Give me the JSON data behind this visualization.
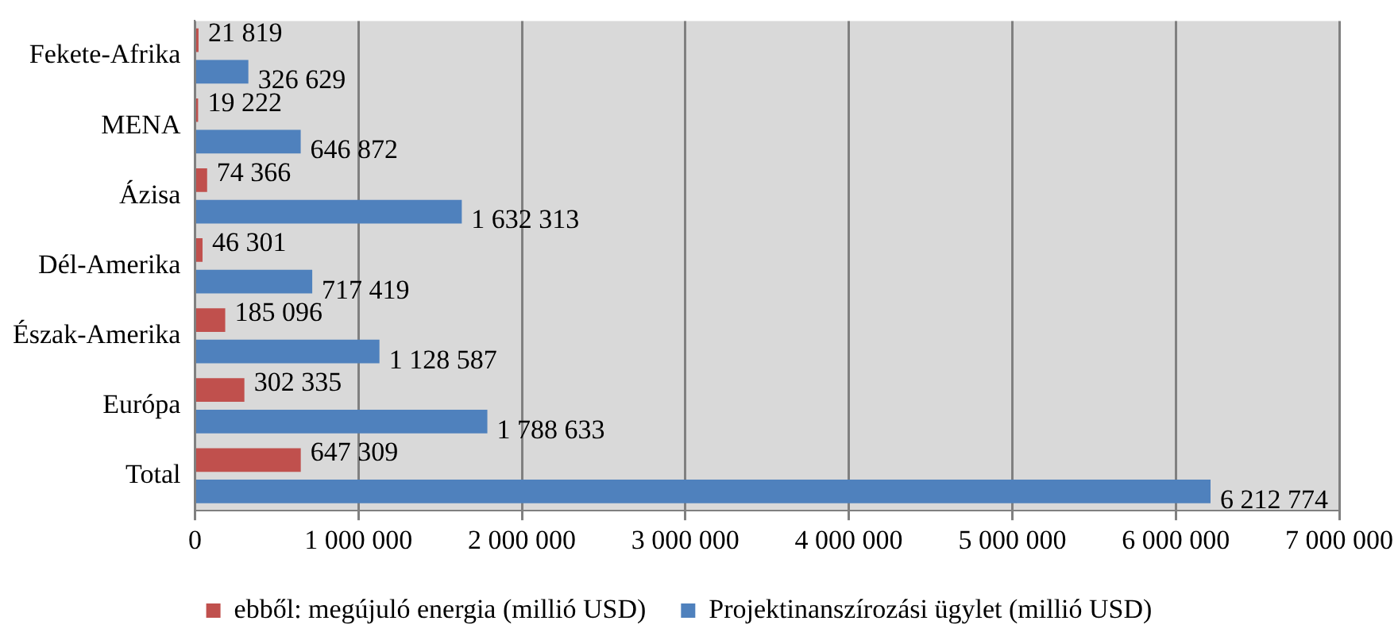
{
  "chart_data": {
    "type": "bar",
    "orientation": "horizontal",
    "categories": [
      "Fekete-Afrika",
      "MENA",
      "Ázisa",
      "Dél-Amerika",
      "Észak-Amerika",
      "Európa",
      "Total"
    ],
    "series": [
      {
        "name": "ebből: megújuló energia (millió USD)",
        "color": "#c0504d",
        "values": [
          21819,
          19222,
          74366,
          46301,
          185096,
          302335,
          647309
        ],
        "value_labels": [
          "21 819",
          "19 222",
          "74 366",
          "46 301",
          "185 096",
          "302 335",
          "647 309"
        ]
      },
      {
        "name": "Projektinanszírozási ügylet (millió USD)",
        "color": "#4f81bd",
        "values": [
          326629,
          646872,
          1632313,
          717419,
          1128587,
          1788633,
          6212774
        ],
        "value_labels": [
          "326 629",
          "646 872",
          "1 632 313",
          "717 419",
          "1 128 587",
          "1 788 633",
          "6 212 774"
        ]
      }
    ],
    "xlim": [
      0,
      7000000
    ],
    "xticks": [
      0,
      {
        "value": 1000000,
        "label": "1 000 000"
      },
      {
        "value": 2000000,
        "label": "2 000 000"
      },
      {
        "value": 3000000,
        "label": "3 000 000"
      },
      {
        "value": 4000000,
        "label": "4 000 000"
      },
      {
        "value": 5000000,
        "label": "5 000 000"
      },
      {
        "value": 6000000,
        "label": "6 000 000"
      },
      {
        "value": 7000000,
        "label": "7 000 000"
      }
    ],
    "grid": "x",
    "legend": "bottom"
  }
}
